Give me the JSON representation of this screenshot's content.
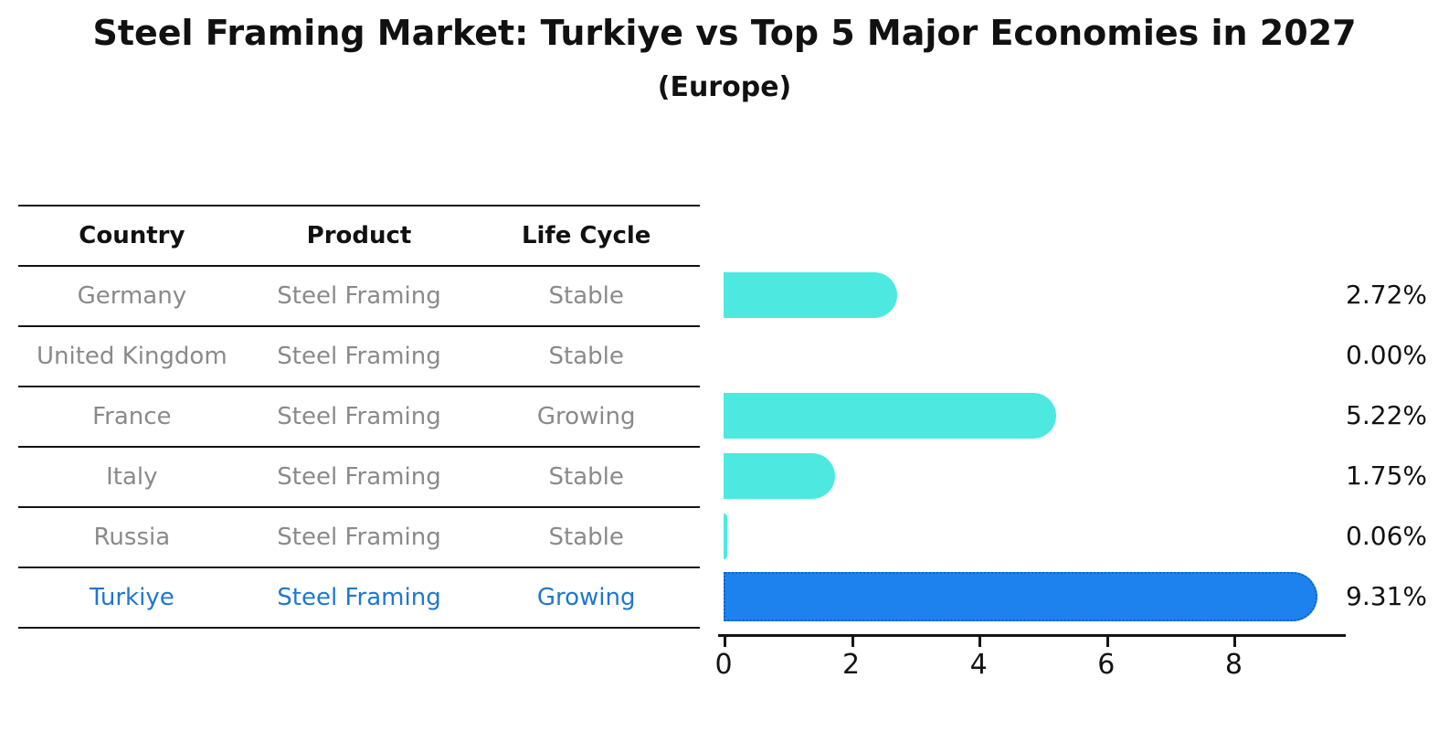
{
  "title": "Steel Framing Market: Turkiye vs Top 5 Major Economies in 2027",
  "subtitle": "(Europe)",
  "table": {
    "columns": [
      "Country",
      "Product",
      "Life Cycle"
    ],
    "rows": [
      {
        "country": "Germany",
        "product": "Steel Framing",
        "life_cycle": "Stable"
      },
      {
        "country": "United Kingdom",
        "product": "Steel Framing",
        "life_cycle": "Stable"
      },
      {
        "country": "France",
        "product": "Steel Framing",
        "life_cycle": "Growing"
      },
      {
        "country": "Italy",
        "product": "Steel Framing",
        "life_cycle": "Stable"
      },
      {
        "country": "Russia",
        "product": "Steel Framing",
        "life_cycle": "Stable"
      },
      {
        "country": "Turkiye",
        "product": "Steel Framing",
        "life_cycle": "Growing"
      }
    ]
  },
  "chart_data": {
    "type": "bar",
    "orientation": "horizontal",
    "title": "Steel Framing Market: Turkiye vs Top 5 Major Economies in 2027",
    "subtitle": "(Europe)",
    "categories": [
      "Germany",
      "United Kingdom",
      "France",
      "Italy",
      "Russia",
      "Turkiye"
    ],
    "values": [
      2.72,
      0.0,
      5.22,
      1.75,
      0.06,
      9.31
    ],
    "value_labels": [
      "2.72%",
      "0.00%",
      "5.22%",
      "1.75%",
      "0.06%",
      "9.31%"
    ],
    "xticks": [
      "0",
      "2",
      "4",
      "6",
      "8"
    ],
    "xtick_values": [
      0,
      2,
      4,
      6,
      8
    ],
    "xlim": [
      0,
      9.75
    ],
    "grid": false,
    "legend": null,
    "bar_colors": [
      "#4DE9E0",
      "#4DE9E0",
      "#4DE9E0",
      "#4DE9E0",
      "#4DE9E0",
      "#1E82EE"
    ],
    "highlight_index": 5,
    "highlight_border_color": "#0F62C4"
  },
  "colors": {
    "accent_cyan": "#4DE9E0",
    "accent_blue": "#1E82EE",
    "highlight_text": "#1F77CF",
    "row_text": "#8A8A8A",
    "heading_text": "#111111"
  }
}
